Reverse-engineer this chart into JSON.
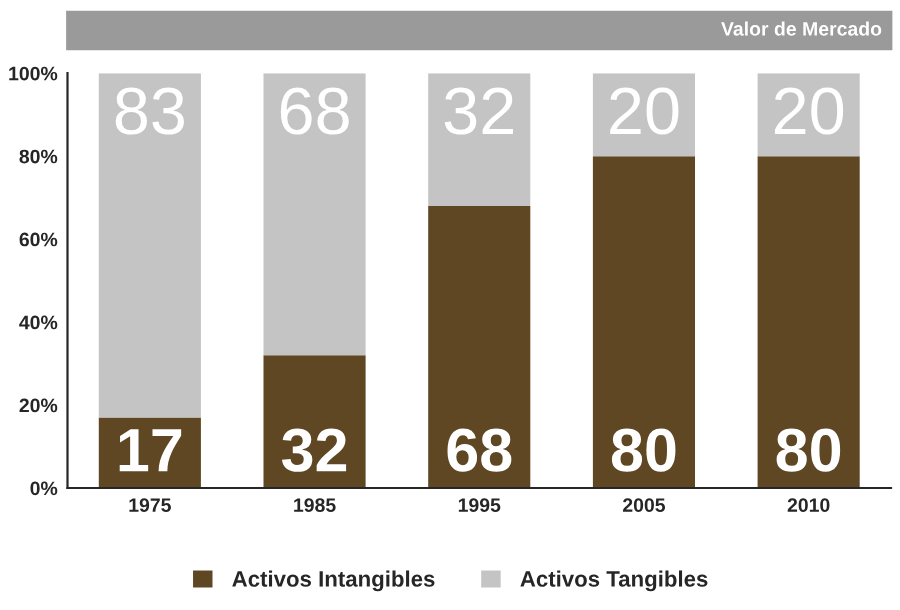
{
  "chart_data": {
    "type": "bar",
    "title": "Valor de Mercado",
    "stacked": true,
    "data_labels": true,
    "legend": "bottom",
    "grid": false,
    "categories": [
      "1975",
      "1985",
      "1995",
      "2005",
      "2010"
    ],
    "series": [
      {
        "name": "Activos Intangibles",
        "color": "#5e4722",
        "values": [
          17,
          32,
          68,
          80,
          80
        ]
      },
      {
        "name": "Activos Tangibles",
        "color": "#c4c4c4",
        "values": [
          83,
          68,
          32,
          20,
          20
        ]
      }
    ],
    "ylim": [
      0,
      100
    ],
    "yticks": [
      {
        "value": 0,
        "label": "0%"
      },
      {
        "value": 20,
        "label": "20%"
      },
      {
        "value": 40,
        "label": "40%"
      },
      {
        "value": 60,
        "label": "60%"
      },
      {
        "value": 80,
        "label": "80%"
      },
      {
        "value": 100,
        "label": "100%"
      }
    ]
  }
}
